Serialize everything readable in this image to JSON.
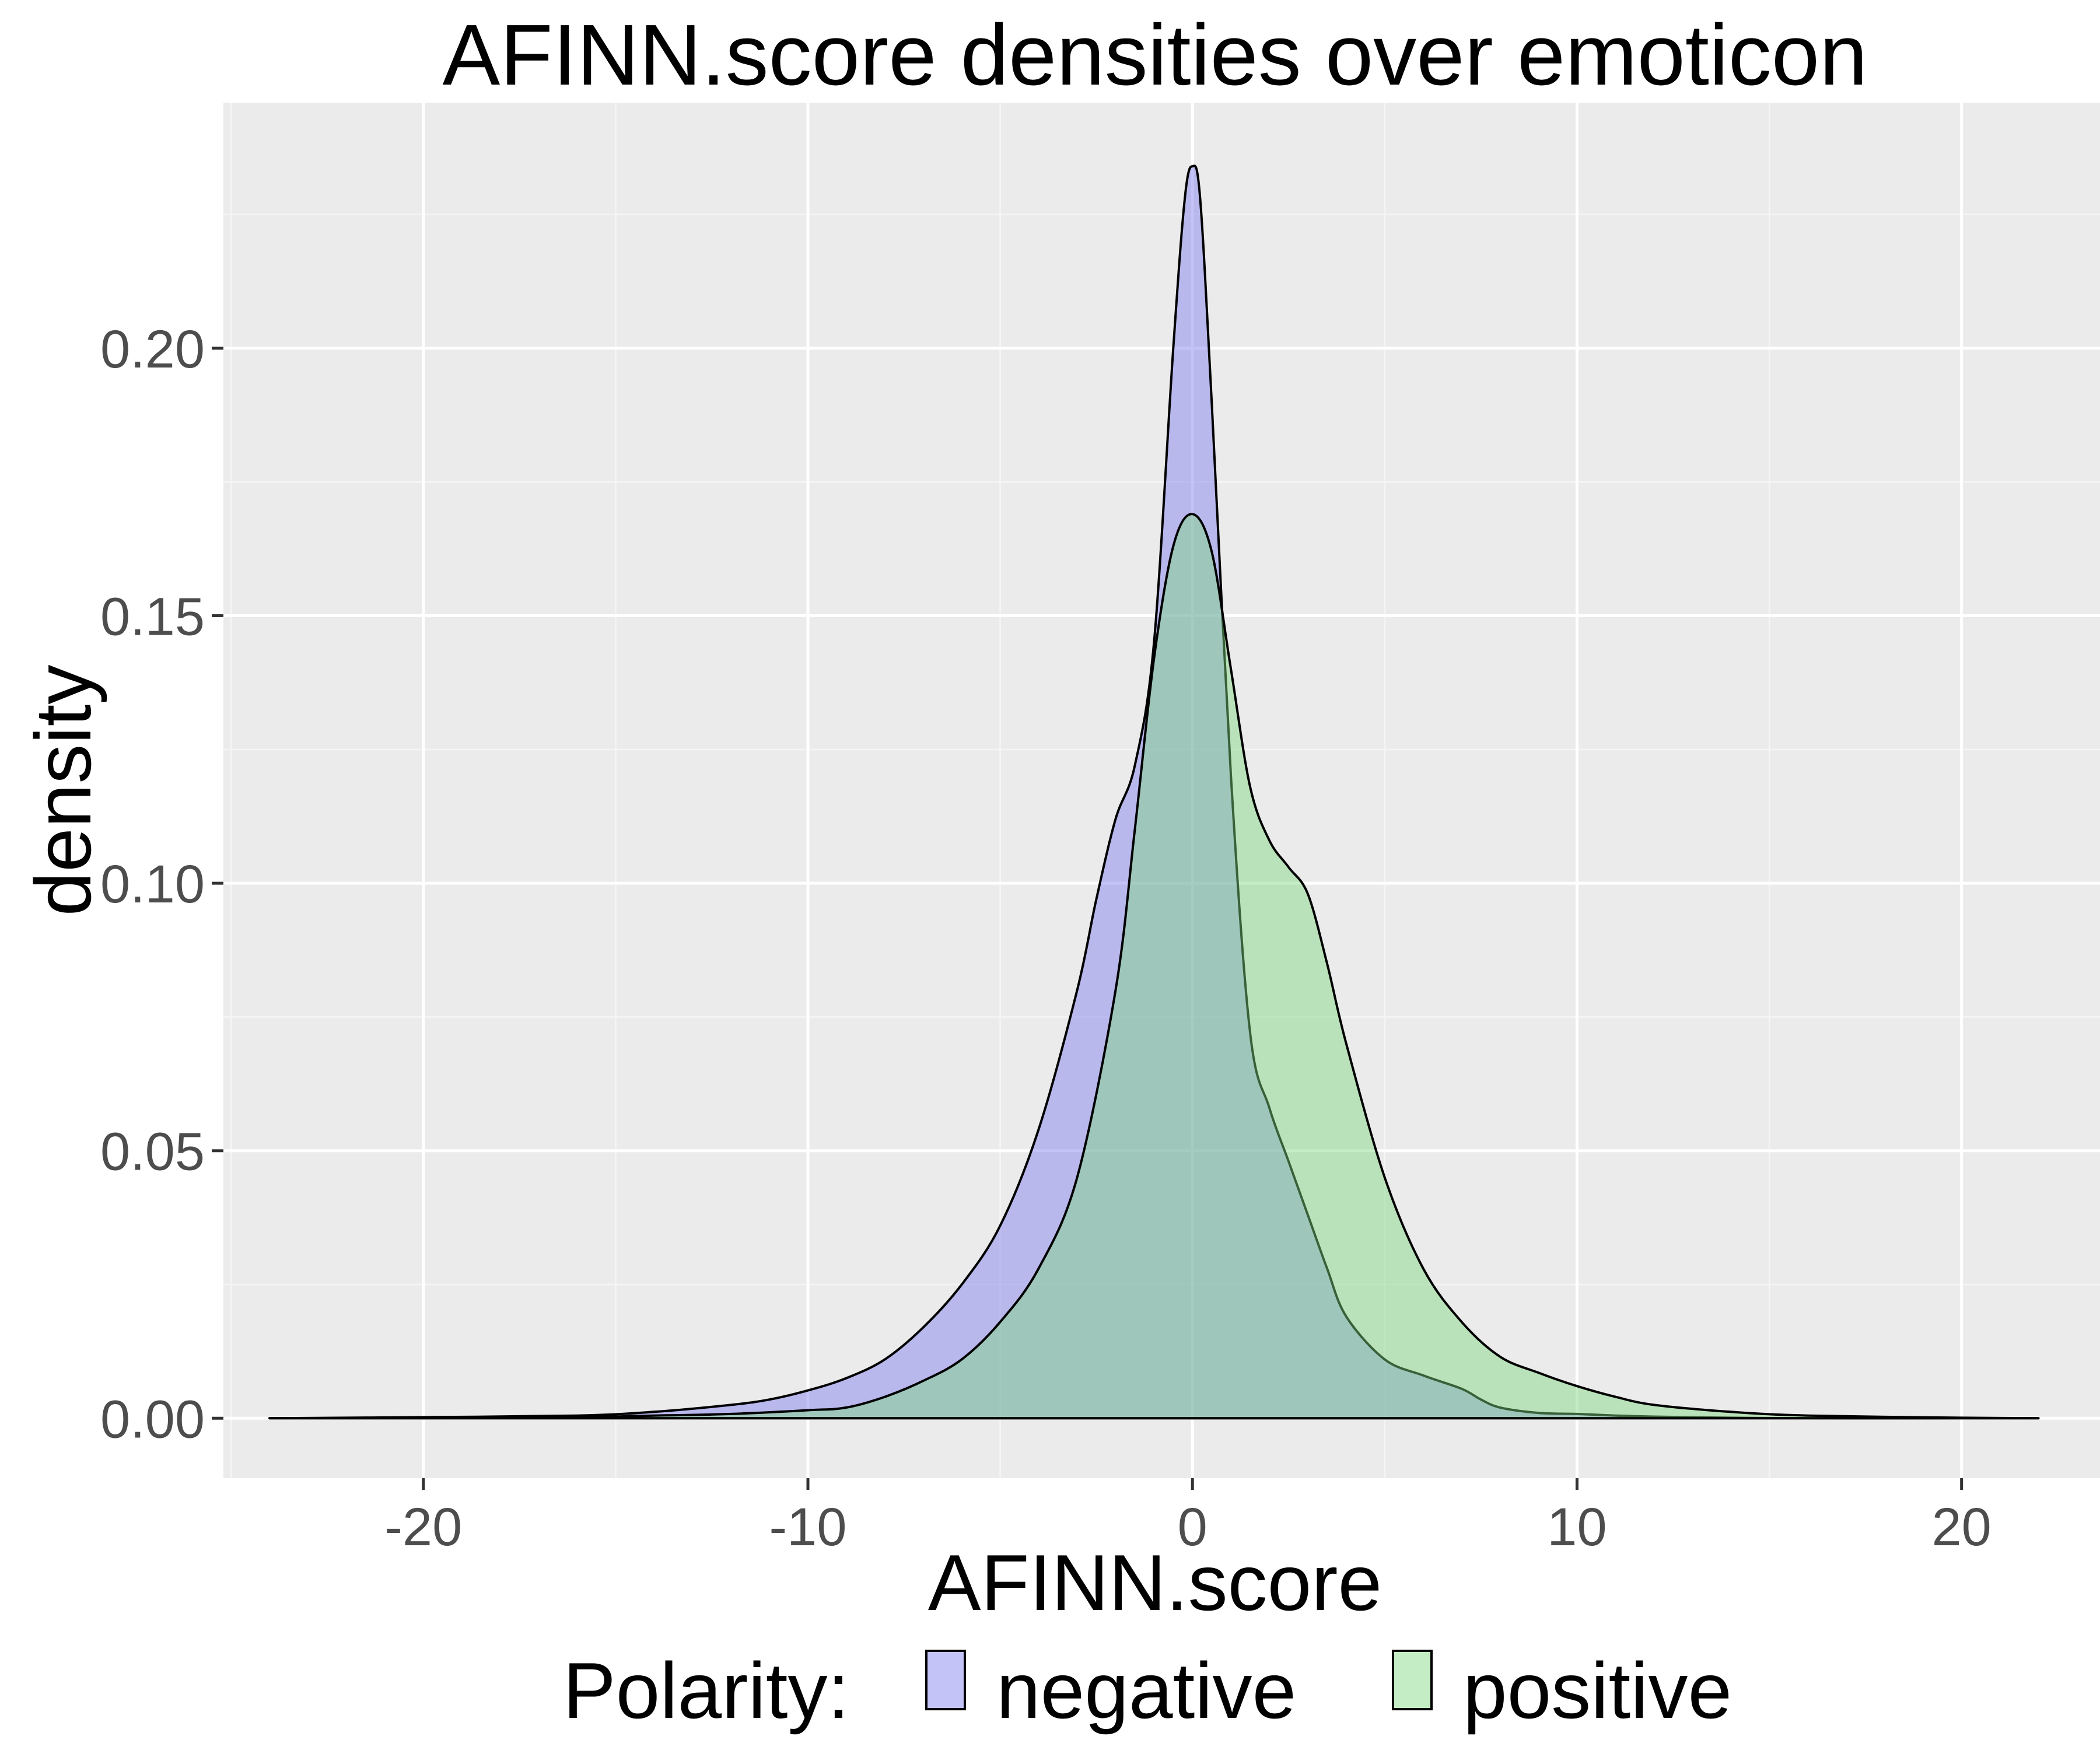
{
  "chart_data": {
    "type": "area",
    "title": "AFINN.score densities over emoticon",
    "xlabel": "AFINN.score",
    "ylabel": "density",
    "xlim": [
      -25.2,
      23.6
    ],
    "ylim": [
      -0.0112,
      0.2459
    ],
    "x_ticks": [
      -20,
      -10,
      0,
      10,
      20
    ],
    "x_tick_labels": [
      "-20",
      "-10",
      "0",
      "10",
      "20"
    ],
    "y_ticks": [
      0,
      0.05,
      0.1,
      0.15,
      0.2
    ],
    "y_tick_labels": [
      "0.00",
      "0.05",
      "0.10",
      "0.15",
      "0.20"
    ],
    "grid": true,
    "legend": {
      "title": "Polarity:",
      "position": "bottom",
      "entries": [
        "negative",
        "positive"
      ]
    },
    "colors": {
      "panel": "#ebebeb",
      "grid_major": "#ffffff",
      "grid_minor": "#f5f5f5",
      "negative": "#7b7bef",
      "positive": "#7fd87f",
      "outline": "#000000"
    },
    "fill_opacity": 0.45,
    "series": [
      {
        "name": "negative",
        "x": [
          -24,
          -20,
          -16,
          -14,
          -12,
          -11,
          -10,
          -9,
          -8,
          -7,
          -6,
          -5,
          -4,
          -3,
          -2.5,
          -2,
          -1.5,
          -1,
          -0.5,
          -0.2,
          0,
          0.2,
          0.5,
          1,
          1.5,
          2,
          2.5,
          3,
          3.5,
          4,
          5,
          6,
          7,
          7.5,
          8,
          9,
          10,
          11,
          12,
          14,
          16,
          20,
          22
        ],
        "values": [
          0,
          0.0002,
          0.0005,
          0.0012,
          0.0025,
          0.0035,
          0.0052,
          0.0075,
          0.011,
          0.017,
          0.025,
          0.036,
          0.054,
          0.08,
          0.097,
          0.112,
          0.122,
          0.145,
          0.2,
          0.228,
          0.234,
          0.228,
          0.19,
          0.12,
          0.072,
          0.058,
          0.048,
          0.038,
          0.028,
          0.019,
          0.011,
          0.008,
          0.0055,
          0.0035,
          0.002,
          0.001,
          0.0008,
          0.0005,
          0.0003,
          0.0001,
          0,
          0,
          0
        ]
      },
      {
        "name": "positive",
        "x": [
          -24,
          -20,
          -16,
          -14,
          -12,
          -10,
          -9,
          -8,
          -7,
          -6,
          -5,
          -4,
          -3,
          -2,
          -1.5,
          -1,
          -0.5,
          0,
          0.5,
          1,
          1.5,
          2,
          2.5,
          3,
          3.5,
          4,
          5,
          6,
          7,
          8,
          9,
          10,
          11,
          12,
          14,
          16,
          20,
          22
        ],
        "values": [
          0,
          0.0001,
          0.0002,
          0.0005,
          0.0008,
          0.0015,
          0.002,
          0.004,
          0.007,
          0.011,
          0.018,
          0.028,
          0.045,
          0.08,
          0.11,
          0.142,
          0.163,
          0.169,
          0.162,
          0.14,
          0.118,
          0.108,
          0.103,
          0.098,
          0.085,
          0.07,
          0.045,
          0.028,
          0.018,
          0.0115,
          0.0085,
          0.006,
          0.004,
          0.0025,
          0.0012,
          0.0005,
          0.0001,
          0
        ]
      }
    ]
  }
}
